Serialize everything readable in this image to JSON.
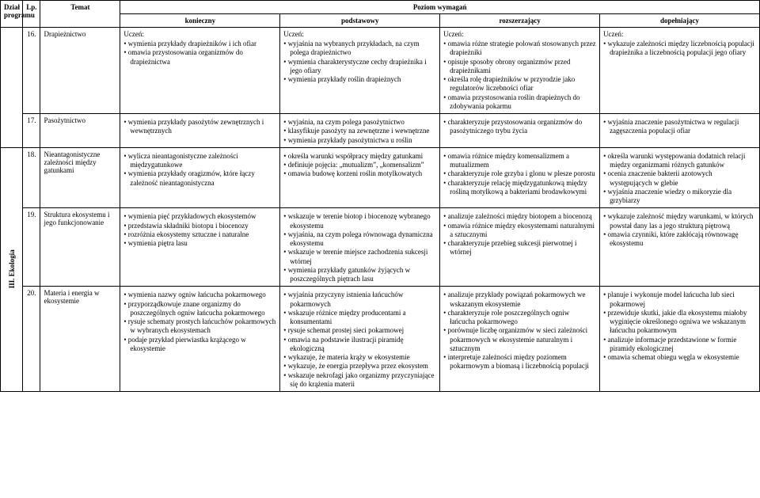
{
  "header": {
    "col_program": "Dział programu",
    "col_lp": "Lp.",
    "col_topic": "Temat",
    "col_level": "Poziom wymagań",
    "lvl_k": "konieczny",
    "lvl_p": "podstawowy",
    "lvl_r": "rozszerzający",
    "lvl_d": "dopełniający"
  },
  "section": "III. Ekologia",
  "uczen": "Uczeń:",
  "rows": [
    {
      "lp": "16.",
      "topic": "Drapieżnictwo",
      "k": [
        "wymienia przykłady drapieżników i ich ofiar",
        "omawia przystosowania organizmów do drapieżnictwa"
      ],
      "p": [
        "wyjaśnia na wybranych przykładach, na czym polega drapieżnictwo",
        "wymienia charakterystyczne cechy drapieżnika i jego ofiary",
        "wymienia przykłady roślin drapieżnych"
      ],
      "r": [
        "omawia różne strategie polowań stosowanych przez drapieżniki",
        "opisuje sposoby obrony organizmów przed drapieżnikami",
        "określa rolę drapieżników w przyrodzie jako regulatorów liczebności ofiar",
        "omawia przystosowania roślin drapieżnych do zdobywania pokarmu"
      ],
      "d": [
        "wykazuje zależności między liczebnością populacji drapieżnika a liczebnością populacji jego ofiary"
      ]
    },
    {
      "lp": "17.",
      "topic": "Pasożytnictwo",
      "k": [
        "wymienia przykłady pasożytów zewnętrznych i wewnętrznych"
      ],
      "p": [
        "wyjaśnia, na czym polega pasożytnictwo",
        "klasyfikuje pasożyty na zewnętrzne i wewnętrzne",
        "wymienia przykłady pasożytnictwa u roślin"
      ],
      "r": [
        "charakteryzuje przystosowania organizmów do pasożytniczego trybu życia"
      ],
      "d": [
        "wyjaśnia znaczenie pasożytnictwa w regulacji zagęszczenia populacji ofiar"
      ]
    },
    {
      "lp": "18.",
      "topic": "Nieantagonistyczne zależności między gatunkami",
      "k": [
        "wylicza nieantagonistyczne zależności międzygatunkowe",
        "wymienia przykłady oragizmów, które łączy zależność nieantagonistyczna"
      ],
      "p": [
        "określa warunki współpracy między gatunkami",
        "definiuje pojęcia: „mutualizm”, „komensalizm”",
        "omawia budowę korzeni roślin motylkowatych"
      ],
      "r": [
        "omawia różnice między komensalizmem a mutualizmem",
        "charakteryzuje role grzyba i glonu w plesze porostu",
        "charakteryzuje relację międzygatunkową między rośliną motylkową a bakteriami brodawkowymi"
      ],
      "d": [
        "określa warunki występowania dodatnich relacji między organizmami różnych gatunków",
        "ocenia znaczenie bakterii azotowych występujących w glebie",
        "wyjaśnia znaczenie wiedzy o mikoryzie dla grzybiarzy"
      ]
    },
    {
      "lp": "19.",
      "topic": "Struktura ekosystemu i jego funkcjonowanie",
      "k": [
        "wymienia pięć przykładowych ekosystemów",
        "przedstawia składniki biotopu i biocenozy",
        "rozróżnia ekosystemy sztuczne i naturalne",
        "wymienia piętra lasu"
      ],
      "p": [
        "wskazuje w terenie biotop i biocenozę wybranego ekosystemu",
        "wyjaśnia, na czym polega równowaga dynamiczna ekosystemu",
        "wskazuje w terenie miejsce zachodzenia sukcesji wtórnej",
        "wymienia przykłady gatunków żyjących w poszczególnych piętrach lasu"
      ],
      "r": [
        "analizuje zależności między biotopem a biocenozą",
        "omawia różnice między ekosystemami naturalnymi a sztucznymi",
        "charakteryzuje przebieg sukcesji pierwotnej i wtórnej"
      ],
      "d": [
        "wykazuje zależność między warunkami, w których powstał dany las a jego strukturą piętrową",
        "omawia czynniki, które zakłócają równowagę ekosystemu"
      ]
    },
    {
      "lp": "20.",
      "topic": "Materia i energia w ekosystemie",
      "k": [
        "wymienia nazwy ogniw łańcucha pokarmowego",
        "przyporządkowuje znane organizmy do poszczególnych ogniw łańcucha pokarmowego",
        "rysuje schematy prostych łańcuchów pokarmowych w wybranych ekosystemach",
        "podaje przykład pierwiastka krążącego w ekosystemie"
      ],
      "p": [
        "wyjaśnia przyczyny istnienia łańcuchów pokarmowych",
        "wskazuje różnice między producentami a konsumentami",
        "rysuje schemat prostej sieci pokarmowej",
        "omawia na podstawie ilustracji piramidę ekologiczną",
        "wykazuje, że materia krąży w ekosystemie",
        "wykazuje, że energia przepływa przez ekosystem",
        "wskazuje nekrofagi jako organizmy przyczyniające się do krążenia materii"
      ],
      "r": [
        "analizuje przykłady powiązań pokarmowych we wskazanym ekosystemie",
        "charakteryzuje role poszczególnych ogniw łańcucha pokarmowego",
        "porównuje liczbę organizmów w sieci zależności pokarmowych w ekosystemie naturalnym i sztucznym",
        "interpretuje zależności między poziomem pokarmowym a biomasą i liczebnością populacji"
      ],
      "d": [
        "planuje i wykonuje model łańcucha lub sieci pokarmowej",
        "przewiduje skutki, jakie dla ekosystemu miałoby wyginięcie określonego ogniwa we wskazanym łańcuchu pokarmowym",
        "analizuje informacje przedstawione w formie piramidy ekologicznej",
        "omawia schemat obiegu węgla w ekosystemie"
      ]
    }
  ]
}
